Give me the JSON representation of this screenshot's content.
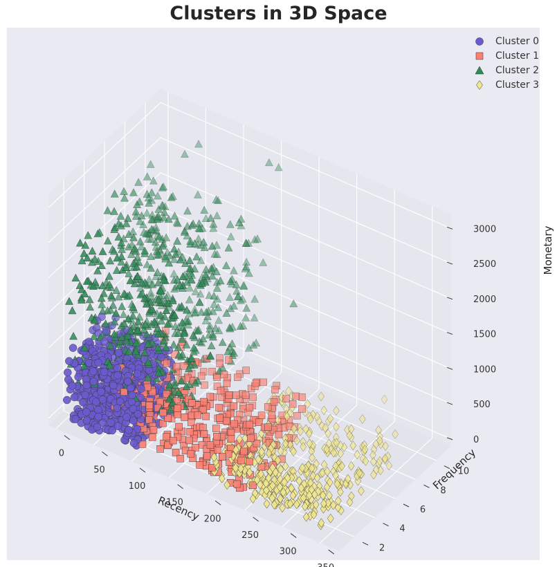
{
  "chart_data": {
    "type": "scatter3d",
    "title": "Clusters in 3D Space",
    "xlabel": "Recency",
    "ylabel": "Frequency",
    "zlabel": "Monetary",
    "xlim": [
      -10,
      375
    ],
    "ylim": [
      0.5,
      11.5
    ],
    "zlim": [
      -100,
      3200
    ],
    "xticks": [
      0,
      50,
      100,
      150,
      200,
      250,
      300,
      350
    ],
    "yticks": [
      2,
      4,
      6,
      8,
      10
    ],
    "zticks": [
      0,
      500,
      1000,
      1500,
      2000,
      2500,
      3000
    ],
    "grid": true,
    "legend_position": "top-right",
    "colors": {
      "figure": "#eaeaf2",
      "pane_floor": "#e3e3eb",
      "pane_walls": "#e6e6ee",
      "grid": "#ffffff",
      "marker_edge": "#333333"
    },
    "series": [
      {
        "name": "Cluster 0",
        "label": "Cluster 0",
        "marker": "circle",
        "color": "#6a5acd",
        "recency_range": [
          0,
          100
        ],
        "frequency_range": [
          1,
          5
        ],
        "monetary_range": [
          0,
          1000
        ],
        "count": 700
      },
      {
        "name": "Cluster 1",
        "label": "Cluster 1",
        "marker": "square",
        "color": "#fa8072",
        "recency_range": [
          60,
          250
        ],
        "frequency_range": [
          1,
          7
        ],
        "monetary_range": [
          0,
          800
        ],
        "count": 380
      },
      {
        "name": "Cluster 2",
        "label": "Cluster 2",
        "marker": "triangle",
        "color": "#2e8b57",
        "recency_range": [
          0,
          150
        ],
        "frequency_range": [
          1,
          10
        ],
        "monetary_range": [
          500,
          2500
        ],
        "count": 620
      },
      {
        "name": "Cluster 3",
        "label": "Cluster 3",
        "marker": "diamond",
        "color": "#f0e68c",
        "recency_range": [
          200,
          350
        ],
        "frequency_range": [
          1,
          8
        ],
        "monetary_range": [
          0,
          500
        ],
        "count": 360
      }
    ],
    "outliers": [
      {
        "series": "Cluster 2",
        "x": 45,
        "y": 9.8,
        "z": 2750
      },
      {
        "series": "Cluster 2",
        "x": 58,
        "y": 10.2,
        "z": 2900
      },
      {
        "series": "Cluster 2",
        "x": 150,
        "y": 10.3,
        "z": 3050
      },
      {
        "series": "Cluster 2",
        "x": 160,
        "y": 10.5,
        "z": 3000
      },
      {
        "series": "Cluster 2",
        "x": 150,
        "y": 7.5,
        "z": 1100
      },
      {
        "series": "Cluster 2",
        "x": 118,
        "y": 6.2,
        "z": 950
      },
      {
        "series": "Cluster 2",
        "x": 200,
        "y": 9.0,
        "z": 1450
      },
      {
        "series": "Cluster 3",
        "x": 340,
        "y": 8.6,
        "z": 300
      },
      {
        "series": "Cluster 3",
        "x": 250,
        "y": 8.0,
        "z": 500
      },
      {
        "series": "Cluster 3",
        "x": 300,
        "y": 10.5,
        "z": 350
      }
    ]
  }
}
